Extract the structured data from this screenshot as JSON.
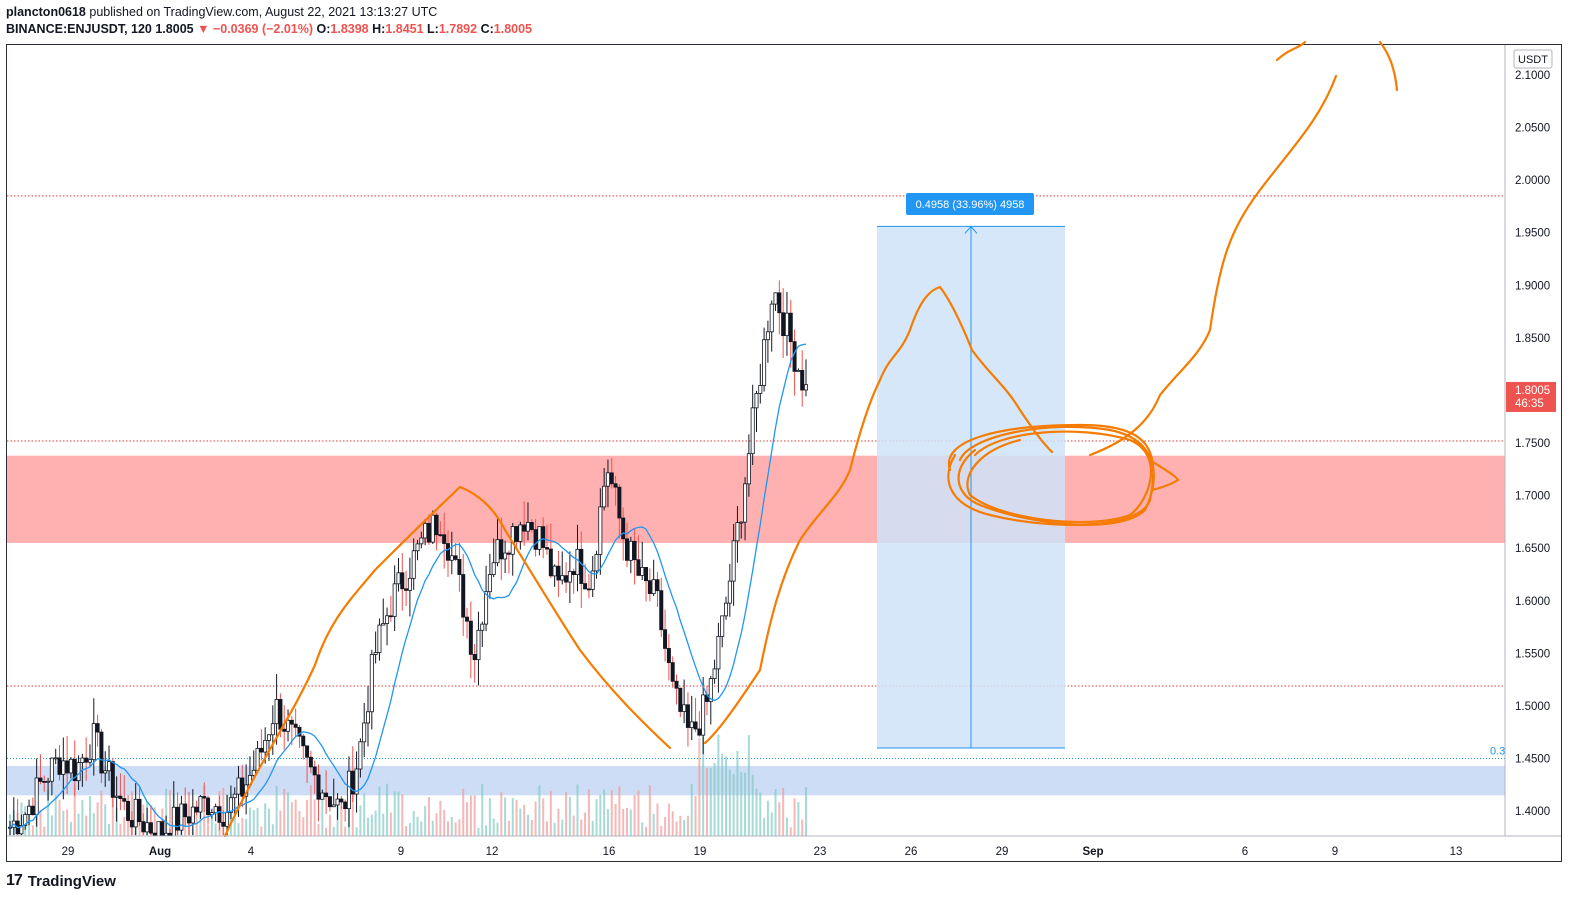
{
  "header": {
    "author": "plancton0618",
    "published_text": "published on TradingView.com, August 22, 2021 13:13:27 UTC",
    "symbol": "BINANCE:ENJUSDT, 120",
    "last": "1.8005",
    "change": "−0.0369 (−2.01%)",
    "o_label": "O:",
    "o": "1.8398",
    "h_label": "H:",
    "h": "1.8451",
    "l_label": "L:",
    "l": "1.7892",
    "c_label": "C:",
    "c": "1.8005"
  },
  "footer": {
    "brand": "TradingView",
    "logo_icon": "tradingview-logo-icon"
  },
  "colors": {
    "up": "#131722",
    "down": "#ef5350",
    "ma": "#2196f3",
    "drawing": "#f57c00",
    "resistance_zone": "#ff9e9e",
    "support_zone": "#c8d9f5",
    "measure_box": "#cfe3f8",
    "measure_label_bg": "#2196f3",
    "price_tag": "#ef5350"
  },
  "chart_data": {
    "type": "candlestick",
    "currency": "USDT",
    "ylim": [
      1.38,
      2.14
    ],
    "y_ticks": [
      "2.1000",
      "2.0500",
      "2.0000",
      "1.9500",
      "1.9000",
      "1.8500",
      "1.8000",
      "1.7500",
      "1.7000",
      "1.6500",
      "1.6000",
      "1.5500",
      "1.5000",
      "1.4500",
      "1.4000"
    ],
    "x_ticks": [
      "29",
      "Aug",
      "4",
      "9",
      "12",
      "16",
      "19",
      "23",
      "26",
      "29",
      "Sep",
      "6",
      "9",
      "13"
    ],
    "last_price": "1.8005",
    "countdown": "46:35",
    "horizontal_levels": [
      1.985,
      1.752,
      1.519
    ],
    "resistance_zone": [
      1.655,
      1.738
    ],
    "support_zone": [
      1.415,
      1.443
    ],
    "support_level_label": "0.3",
    "measure": {
      "from": 1.46,
      "to": 1.956,
      "label": "0.4958 (33.96%) 4958"
    },
    "price_path": [
      1.385,
      1.4,
      1.43,
      1.45,
      1.44,
      1.47,
      1.43,
      1.4,
      1.39,
      1.38,
      1.39,
      1.4,
      1.41,
      1.4,
      1.42,
      1.45,
      1.5,
      1.47,
      1.44,
      1.42,
      1.4,
      1.45,
      1.55,
      1.6,
      1.63,
      1.66,
      1.68,
      1.62,
      1.55,
      1.64,
      1.66,
      1.68,
      1.66,
      1.61,
      1.64,
      1.62,
      1.73,
      1.66,
      1.62,
      1.6,
      1.51,
      1.47,
      1.5,
      1.58,
      1.68,
      1.79,
      1.9,
      1.85,
      1.8
    ]
  }
}
